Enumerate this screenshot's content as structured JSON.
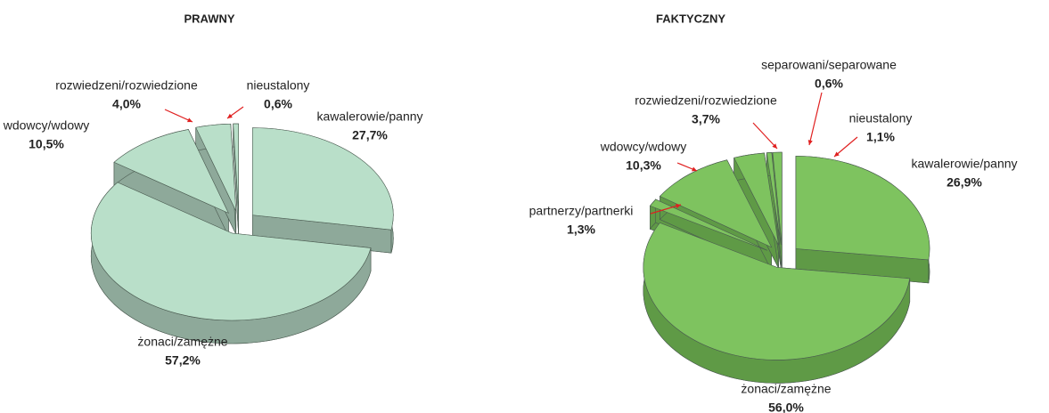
{
  "chart_data": [
    {
      "type": "pie",
      "title": "PRAWNY",
      "categories": [
        "kawalerowie/panny",
        "żonaci/zamężne",
        "wdowcy/wdowy",
        "rozwiedzeni/rozwiedzione",
        "nieustalony"
      ],
      "values": [
        27.7,
        57.2,
        10.5,
        4.0,
        0.6
      ],
      "value_labels": [
        "27,7%",
        "57,2%",
        "10,5%",
        "4,0%",
        "0,6%"
      ],
      "color": "#b9dfc9",
      "side_color": "#8ea99a"
    },
    {
      "type": "pie",
      "title": "FAKTYCZNY",
      "categories": [
        "kawalerowie/panny",
        "żonaci/zamężne",
        "partnerzy/partnerki",
        "wdowcy/wdowy",
        "rozwiedzeni/rozwiedzione",
        "separowani/separowane",
        "nieustalony"
      ],
      "values": [
        26.9,
        56.0,
        1.3,
        10.3,
        3.7,
        0.6,
        1.1
      ],
      "value_labels": [
        "26,9%",
        "56,0%",
        "1,3%",
        "10,3%",
        "3,7%",
        "0,6%",
        "1,1%"
      ],
      "color": "#7ec35f",
      "side_color": "#5f9a46"
    }
  ]
}
